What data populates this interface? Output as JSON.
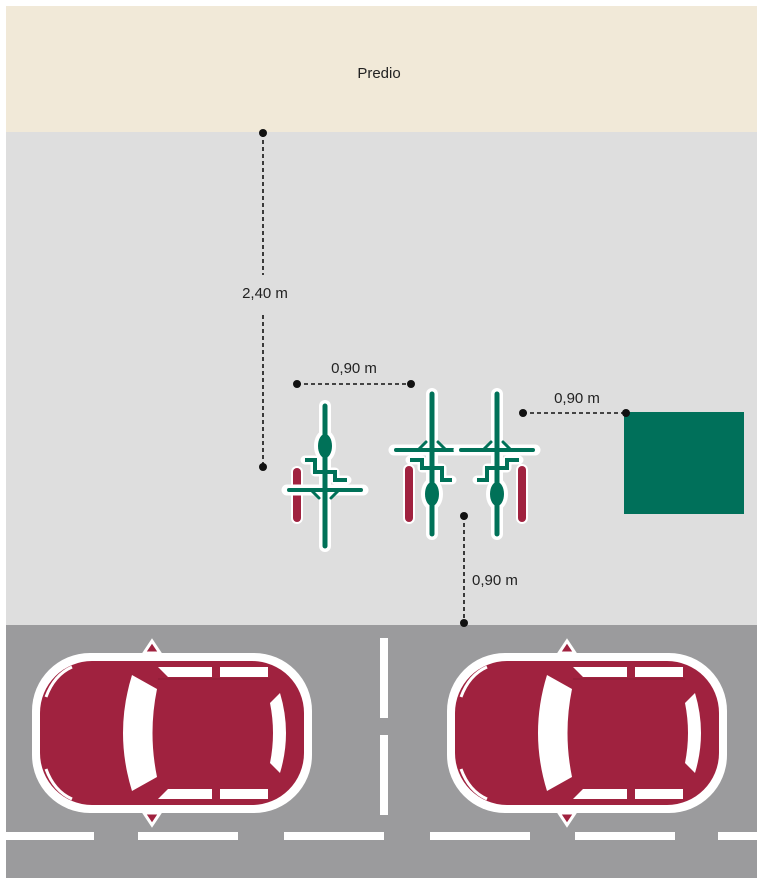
{
  "property": {
    "label": "Predio"
  },
  "dimensions": {
    "setback": "2,40 m",
    "bike_spacing": "0,90 m",
    "object_clearance": "0,90 m",
    "curb_clearance": "0,90 m"
  },
  "colors": {
    "property": "#f1e9d8",
    "sidewalk": "#dedede",
    "road": "#9b9b9d",
    "bike": "#007158",
    "rack": "#a0223f",
    "car": "#a0223f",
    "obstacle": "#00705a",
    "marking": "#ffffff"
  },
  "bikes": [
    {
      "name": "bike-1-icon",
      "rack_side": "left",
      "flipped": false
    },
    {
      "name": "bike-2-icon",
      "rack_side": "left",
      "flipped": true
    },
    {
      "name": "bike-3-icon",
      "rack_side": "right",
      "flipped": true
    }
  ],
  "cars": [
    {
      "name": "parked-car-left-icon"
    },
    {
      "name": "parked-car-right-icon"
    }
  ]
}
